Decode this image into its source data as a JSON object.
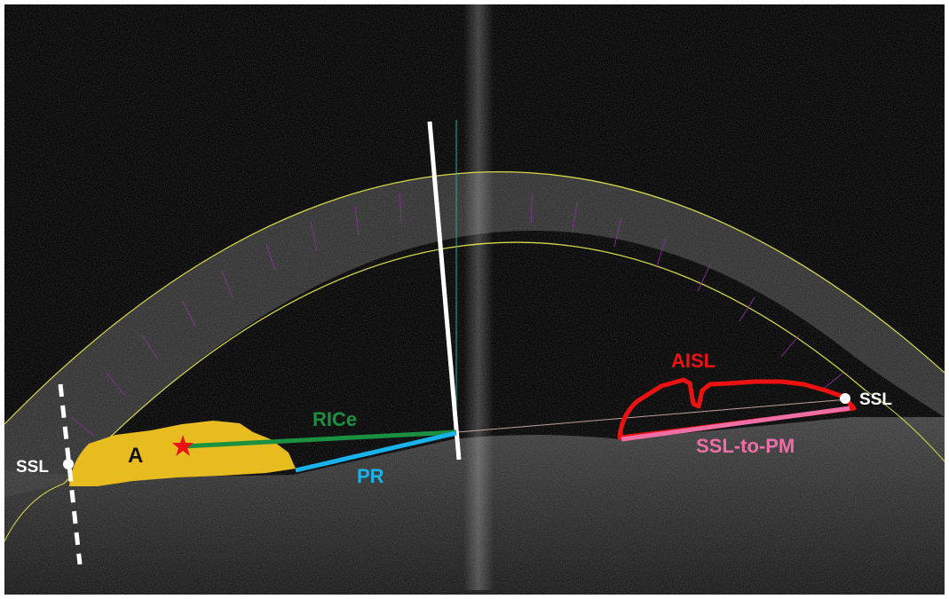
{
  "labels": {
    "ssl_left": "SSL",
    "ssl_right": "SSL",
    "area": "A",
    "rice": "RICe",
    "pr": "PR",
    "aisl": "AISL",
    "ssl_to_pm": "SSL-to-PM"
  },
  "colors": {
    "area_fill": "#e8bb1e",
    "rice_line": "#1a9140",
    "pr_line": "#18b3ea",
    "aisl_outline": "#ee1111",
    "ssl_to_pm_line": "#ee6fa6",
    "star": "#ee1111",
    "guide_line": "#ffffff",
    "boundary_line": "#d8d84a",
    "cornea_ticks": "#8a2f9a"
  },
  "icons": {
    "star": "star-icon",
    "ssl_markers": "white-dot-marker"
  }
}
